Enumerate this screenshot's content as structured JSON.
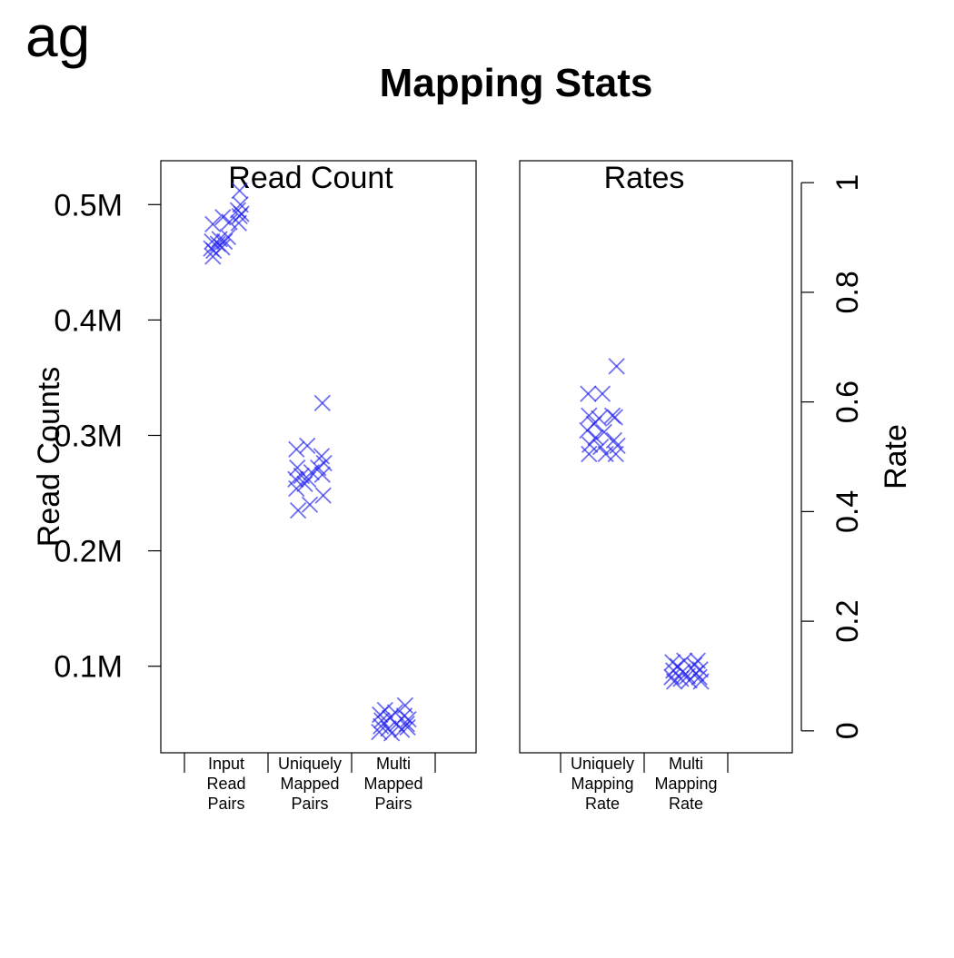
{
  "corner_label": "ag",
  "chart_data": [
    {
      "type": "scatter",
      "title": "Mapping Stats",
      "panel_title": "Read Count",
      "ylabel": "Read Counts",
      "ylim": [
        0.025,
        0.538
      ],
      "yticks": [
        0.1,
        0.2,
        0.3,
        0.4,
        0.5
      ],
      "ytick_labels": [
        "0.1M",
        "0.2M",
        "0.3M",
        "0.4M",
        "0.5M"
      ],
      "categories": [
        [
          "Input",
          "Read",
          "Pairs"
        ],
        [
          "Uniquely",
          "Mapped",
          "Pairs"
        ],
        [
          "Multi",
          "Mapped",
          "Pairs"
        ]
      ],
      "marker": "x",
      "color": "#2222ee",
      "series": [
        {
          "category_index": 0,
          "points": [
            {
              "dx": -0.16,
              "y": 0.483
            },
            {
              "dx": -0.17,
              "y": 0.468
            },
            {
              "dx": -0.18,
              "y": 0.462
            },
            {
              "dx": -0.16,
              "y": 0.455
            },
            {
              "dx": -0.15,
              "y": 0.46
            },
            {
              "dx": -0.1,
              "y": 0.466
            },
            {
              "dx": -0.08,
              "y": 0.47
            },
            {
              "dx": -0.05,
              "y": 0.463
            },
            {
              "dx": -0.02,
              "y": 0.468
            },
            {
              "dx": -0.04,
              "y": 0.489
            },
            {
              "dx": 0.02,
              "y": 0.472
            },
            {
              "dx": 0.04,
              "y": 0.485
            },
            {
              "dx": 0.14,
              "y": 0.495
            },
            {
              "dx": 0.16,
              "y": 0.49
            },
            {
              "dx": 0.15,
              "y": 0.484
            },
            {
              "dx": 0.17,
              "y": 0.5
            },
            {
              "dx": 0.16,
              "y": 0.512
            },
            {
              "dx": 0.18,
              "y": 0.492
            }
          ]
        },
        {
          "category_index": 1,
          "points": [
            {
              "dx": -0.16,
              "y": 0.288
            },
            {
              "dx": -0.15,
              "y": 0.272
            },
            {
              "dx": -0.17,
              "y": 0.262
            },
            {
              "dx": -0.16,
              "y": 0.254
            },
            {
              "dx": -0.14,
              "y": 0.235
            },
            {
              "dx": -0.1,
              "y": 0.265
            },
            {
              "dx": -0.06,
              "y": 0.258
            },
            {
              "dx": -0.03,
              "y": 0.291
            },
            {
              "dx": -0.02,
              "y": 0.262
            },
            {
              "dx": 0.0,
              "y": 0.24
            },
            {
              "dx": 0.02,
              "y": 0.268
            },
            {
              "dx": 0.1,
              "y": 0.272
            },
            {
              "dx": 0.14,
              "y": 0.282
            },
            {
              "dx": 0.15,
              "y": 0.266
            },
            {
              "dx": 0.16,
              "y": 0.248
            },
            {
              "dx": 0.17,
              "y": 0.276
            },
            {
              "dx": 0.15,
              "y": 0.328
            }
          ]
        },
        {
          "category_index": 2,
          "points": [
            {
              "dx": -0.16,
              "y": 0.058
            },
            {
              "dx": -0.15,
              "y": 0.048
            },
            {
              "dx": -0.17,
              "y": 0.043
            },
            {
              "dx": -0.14,
              "y": 0.053
            },
            {
              "dx": -0.1,
              "y": 0.062
            },
            {
              "dx": -0.06,
              "y": 0.046
            },
            {
              "dx": -0.04,
              "y": 0.055
            },
            {
              "dx": -0.02,
              "y": 0.042
            },
            {
              "dx": 0.02,
              "y": 0.06
            },
            {
              "dx": 0.04,
              "y": 0.05
            },
            {
              "dx": 0.1,
              "y": 0.045
            },
            {
              "dx": 0.13,
              "y": 0.057
            },
            {
              "dx": 0.14,
              "y": 0.066
            },
            {
              "dx": 0.16,
              "y": 0.05
            },
            {
              "dx": 0.17,
              "y": 0.047
            },
            {
              "dx": 0.18,
              "y": 0.054
            }
          ]
        }
      ]
    },
    {
      "type": "scatter",
      "panel_title": "Rates",
      "ylabel": "Rate",
      "y_axis_side": "right",
      "ylim": [
        -0.04,
        1.04
      ],
      "yticks": [
        0,
        0.2,
        0.4,
        0.6,
        0.8,
        1
      ],
      "ytick_labels": [
        "0",
        "0.2",
        "0.4",
        "0.6",
        "0.8",
        "1"
      ],
      "categories": [
        [
          "Uniquely",
          "Mapping",
          "Rate"
        ],
        [
          "Multi",
          "Mapping",
          "Rate"
        ]
      ],
      "marker": "x",
      "color": "#2222ee",
      "series": [
        {
          "category_index": 0,
          "points": [
            {
              "dx": -0.17,
              "y": 0.615
            },
            {
              "dx": -0.16,
              "y": 0.575
            },
            {
              "dx": -0.18,
              "y": 0.548
            },
            {
              "dx": -0.15,
              "y": 0.522
            },
            {
              "dx": -0.16,
              "y": 0.505
            },
            {
              "dx": -0.1,
              "y": 0.56
            },
            {
              "dx": -0.08,
              "y": 0.535
            },
            {
              "dx": -0.04,
              "y": 0.57
            },
            {
              "dx": -0.02,
              "y": 0.518
            },
            {
              "dx": 0.0,
              "y": 0.615
            },
            {
              "dx": 0.02,
              "y": 0.545
            },
            {
              "dx": 0.04,
              "y": 0.505
            },
            {
              "dx": 0.12,
              "y": 0.575
            },
            {
              "dx": 0.14,
              "y": 0.53
            },
            {
              "dx": 0.16,
              "y": 0.505
            },
            {
              "dx": 0.18,
              "y": 0.52
            },
            {
              "dx": 0.15,
              "y": 0.572
            },
            {
              "dx": 0.17,
              "y": 0.665
            }
          ]
        },
        {
          "category_index": 1,
          "points": [
            {
              "dx": -0.16,
              "y": 0.125
            },
            {
              "dx": -0.15,
              "y": 0.11
            },
            {
              "dx": -0.17,
              "y": 0.098
            },
            {
              "dx": -0.14,
              "y": 0.09
            },
            {
              "dx": -0.1,
              "y": 0.118
            },
            {
              "dx": -0.06,
              "y": 0.095
            },
            {
              "dx": -0.04,
              "y": 0.108
            },
            {
              "dx": -0.02,
              "y": 0.128
            },
            {
              "dx": 0.02,
              "y": 0.1
            },
            {
              "dx": 0.04,
              "y": 0.092
            },
            {
              "dx": 0.1,
              "y": 0.12
            },
            {
              "dx": 0.12,
              "y": 0.105
            },
            {
              "dx": 0.14,
              "y": 0.128
            },
            {
              "dx": 0.16,
              "y": 0.098
            },
            {
              "dx": 0.17,
              "y": 0.112
            },
            {
              "dx": 0.18,
              "y": 0.09
            }
          ]
        }
      ]
    }
  ]
}
